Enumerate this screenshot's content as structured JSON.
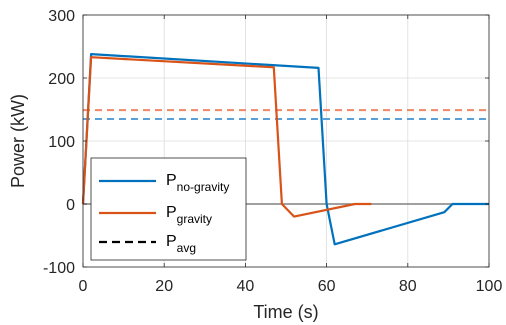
{
  "chart_data": {
    "type": "line",
    "xlabel": "Time (s)",
    "ylabel": "Power (kW)",
    "xlim": [
      0,
      100
    ],
    "ylim": [
      -100,
      300
    ],
    "xticks": [
      "0",
      "20",
      "40",
      "60",
      "80",
      "100"
    ],
    "yticks": [
      "-100",
      "0",
      "100",
      "200",
      "300"
    ],
    "grid": true,
    "legend_position": "bottom-left",
    "series": [
      {
        "name": "P",
        "subscript": "no-gravity",
        "color": "#0072BD",
        "style": "solid",
        "points": [
          [
            0,
            0
          ],
          [
            2,
            238
          ],
          [
            58,
            216
          ],
          [
            60,
            0
          ],
          [
            62,
            -64
          ],
          [
            89,
            -13
          ],
          [
            91,
            0
          ],
          [
            100,
            0
          ]
        ]
      },
      {
        "name": "P",
        "subscript": "gravity",
        "color": "#D95319",
        "style": "solid",
        "points": [
          [
            0,
            0
          ],
          [
            2,
            233
          ],
          [
            47,
            217
          ],
          [
            49,
            0
          ],
          [
            52,
            -20
          ],
          [
            67,
            0
          ],
          [
            71,
            0
          ]
        ]
      },
      {
        "name": "P",
        "subscript": "avg",
        "color": "#000000",
        "style": "dashed",
        "legend_only": true
      }
    ],
    "average_lines": [
      {
        "value": 149,
        "color": "#EE8866",
        "style": "dashed"
      },
      {
        "value": 135,
        "color": "#5AA0D8",
        "style": "dashed"
      }
    ],
    "zero_line_color": "#808080"
  }
}
